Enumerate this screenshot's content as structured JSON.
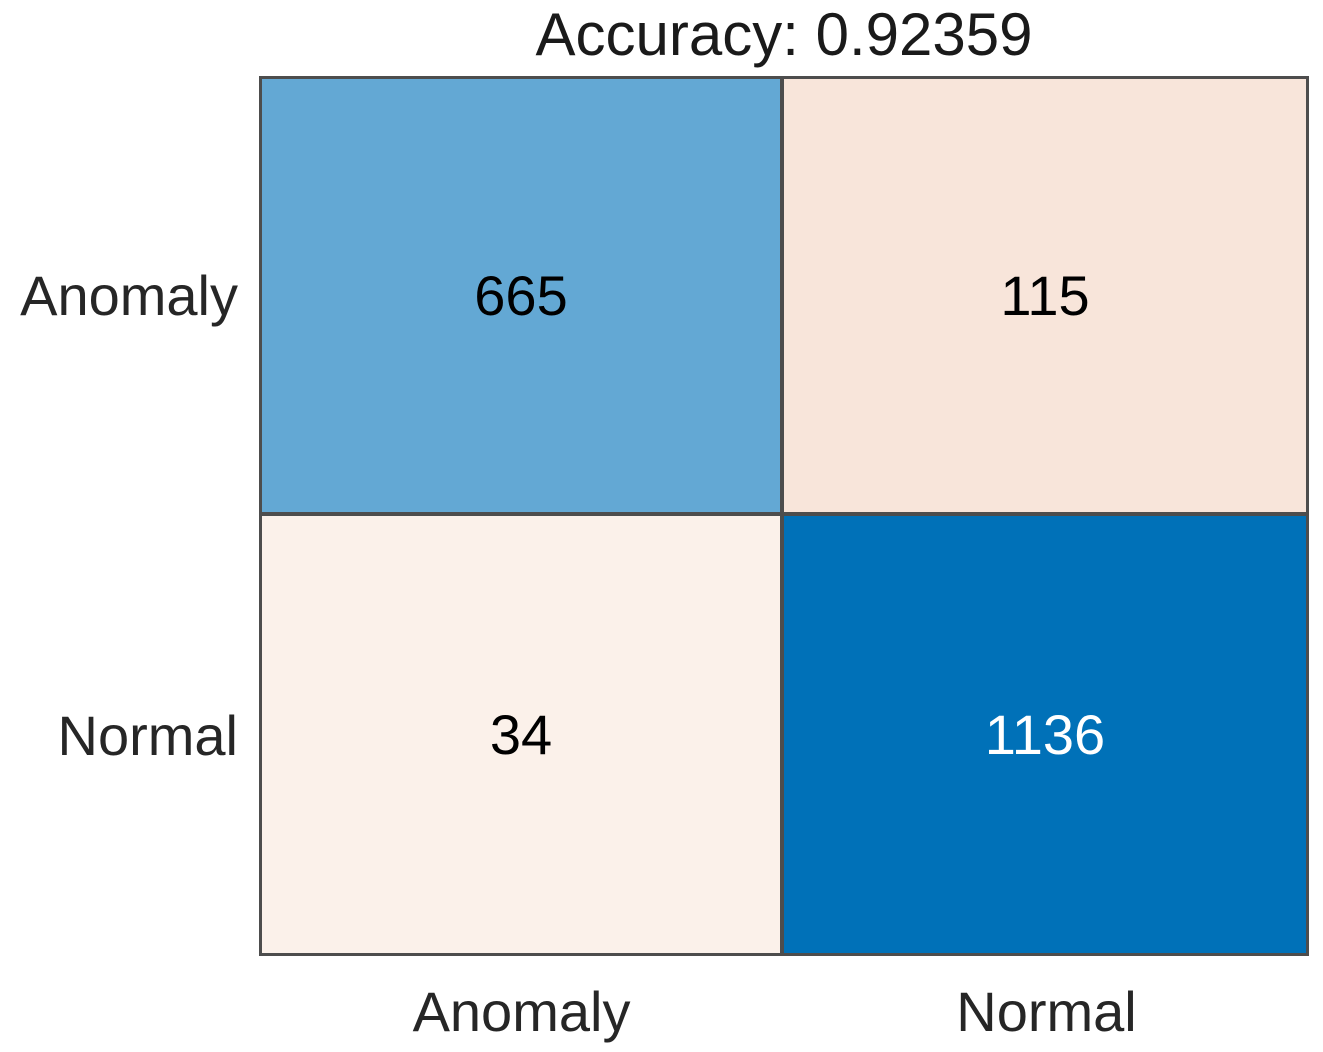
{
  "chart_data": {
    "type": "heatmap",
    "subtype": "confusion_matrix",
    "title": "Accuracy: 0.92359",
    "accuracy": "0.92359",
    "rows": [
      "Anomaly",
      "Normal"
    ],
    "cols": [
      "Anomaly",
      "Normal"
    ],
    "matrix": [
      [
        665,
        115
      ],
      [
        34,
        1136
      ]
    ],
    "cells": {
      "tl": {
        "row": "Anomaly",
        "col": "Anomaly",
        "value": 665,
        "bg": "#63a8d4",
        "fg": "#000000"
      },
      "tr": {
        "row": "Anomaly",
        "col": "Normal",
        "value": 115,
        "bg": "#f8e5da",
        "fg": "#000000"
      },
      "bl": {
        "row": "Normal",
        "col": "Anomaly",
        "value": 34,
        "bg": "#fbf1ea",
        "fg": "#000000"
      },
      "br": {
        "row": "Normal",
        "col": "Normal",
        "value": 1136,
        "bg": "#0071b8",
        "fg": "#ffffff"
      }
    },
    "colors": {
      "grid_line": "#4d4d4d",
      "title_text": "#1a1a1a",
      "axis_text": "#262626",
      "background": "#ffffff"
    },
    "layout": {
      "legend": false,
      "grid": true,
      "row_labels_position": "left",
      "col_labels_position": "bottom"
    }
  }
}
